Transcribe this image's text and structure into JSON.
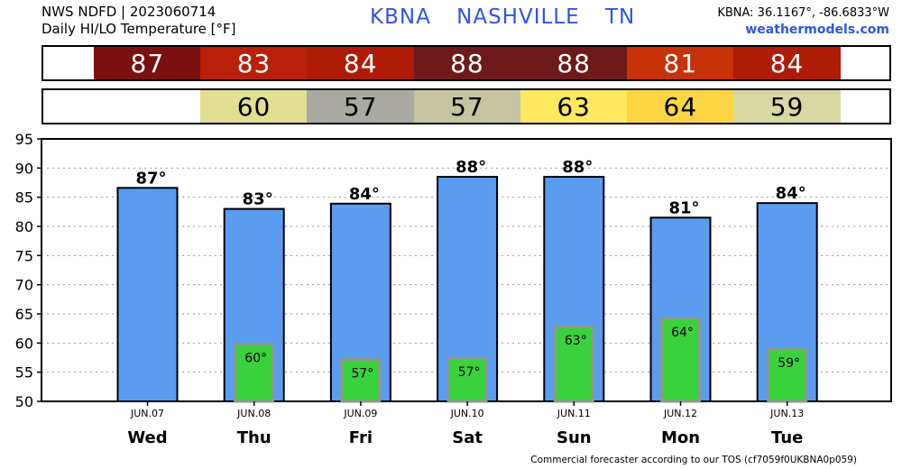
{
  "header": {
    "line1": "NWS NDFD | 2023060714",
    "line2": "Daily HI/LO Temperature [°F]",
    "station": "KBNA",
    "city": "NASHVILLE",
    "state": "TN",
    "coords": "KBNA: 36.1167°, -86.6833°W",
    "site": "weathermodels.com"
  },
  "footer": "Commercial forecaster according to our TOS (cf7059f0UKBNA0p059)",
  "colors": {
    "hi_bar": "#5a9cf0",
    "lo_bar": "#3ad23c",
    "lo_bar_border": "#8c9a8c"
  },
  "hi_strip": [
    {
      "value": "87",
      "color": "#7a1010"
    },
    {
      "value": "83",
      "color": "#b8200a"
    },
    {
      "value": "84",
      "color": "#ae1c08"
    },
    {
      "value": "88",
      "color": "#6e1a1a"
    },
    {
      "value": "88",
      "color": "#6e1a1a"
    },
    {
      "value": "81",
      "color": "#c83208"
    },
    {
      "value": "84",
      "color": "#ae1c08"
    }
  ],
  "lo_strip": [
    {
      "value": "",
      "color": "#ffffff"
    },
    {
      "value": "60",
      "color": "#e0e090"
    },
    {
      "value": "57",
      "color": "#aaaaa2"
    },
    {
      "value": "57",
      "color": "#c4c4a0"
    },
    {
      "value": "63",
      "color": "#fde860"
    },
    {
      "value": "64",
      "color": "#fbd642"
    },
    {
      "value": "59",
      "color": "#d8d8a2"
    }
  ],
  "chart_data": {
    "type": "bar",
    "ylim": [
      50,
      95
    ],
    "yticks": [
      50,
      55,
      60,
      65,
      70,
      75,
      80,
      85,
      90,
      95
    ],
    "grid": true,
    "dates": [
      "JUN.07",
      "JUN.08",
      "JUN.09",
      "JUN.10",
      "JUN.11",
      "JUN.12",
      "JUN.13"
    ],
    "days": [
      "Wed",
      "Thu",
      "Fri",
      "Sat",
      "Sun",
      "Mon",
      "Tue"
    ],
    "series": [
      {
        "values": [
          86.6,
          83.0,
          83.9,
          88.5,
          88.5,
          81.5,
          84.0
        ],
        "labels": [
          "87°",
          "83°",
          "84°",
          "88°",
          "88°",
          "81°",
          "84°"
        ]
      },
      {
        "values": [
          null,
          59.8,
          57.2,
          57.4,
          62.8,
          64.2,
          59.0
        ],
        "labels": [
          "",
          "60°",
          "57°",
          "57°",
          "63°",
          "64°",
          "59°"
        ]
      }
    ]
  }
}
